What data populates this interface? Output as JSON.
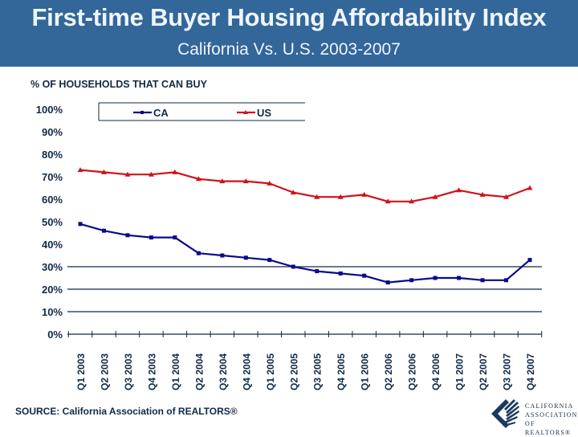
{
  "header": {
    "title": "First-time Buyer Housing Affordability Index",
    "subtitle": "California Vs. U.S. 2003-2007",
    "background_color": "#336699"
  },
  "footer": {
    "source": "SOURCE: California Association of REALTORS®",
    "logo_lines": [
      "CALIFORNIA",
      "ASSOCIATION",
      "OF REALTORS®"
    ]
  },
  "chart_data": {
    "type": "line",
    "title": "First-time Buyer Housing Affordability Index",
    "subtitle": "California Vs. U.S. 2003-2007",
    "ylabel": "% OF HOUSEHOLDS THAT CAN BUY",
    "xlabel": "",
    "ylim": [
      0,
      100
    ],
    "yticks": [
      "0%",
      "10%",
      "20%",
      "30%",
      "40%",
      "50%",
      "60%",
      "70%",
      "80%",
      "90%",
      "100%"
    ],
    "grid": "horizontal",
    "legend": "top",
    "categories": [
      "Q1 2003",
      "Q2 2003",
      "Q3 2003",
      "Q4 2003",
      "Q1 2004",
      "Q2 2004",
      "Q3 2004",
      "Q4 2004",
      "Q1 2005",
      "Q2 2005",
      "Q3 2005",
      "Q4 2005",
      "Q1 2006",
      "Q2 2006",
      "Q3 2006",
      "Q4 2006",
      "Q1 2007",
      "Q2 2007",
      "Q3 2007",
      "Q4 2007"
    ],
    "series": [
      {
        "name": "CA",
        "color": "#0a0a8c",
        "marker": "square",
        "values": [
          49,
          46,
          44,
          43,
          43,
          36,
          35,
          34,
          33,
          30,
          28,
          27,
          26,
          23,
          24,
          25,
          25,
          24,
          24,
          33
        ]
      },
      {
        "name": "US",
        "color": "#d0121b",
        "marker": "triangle",
        "values": [
          73,
          72,
          71,
          71,
          72,
          69,
          68,
          68,
          67,
          63,
          61,
          61,
          62,
          59,
          59,
          61,
          64,
          62,
          61,
          65
        ]
      }
    ]
  }
}
